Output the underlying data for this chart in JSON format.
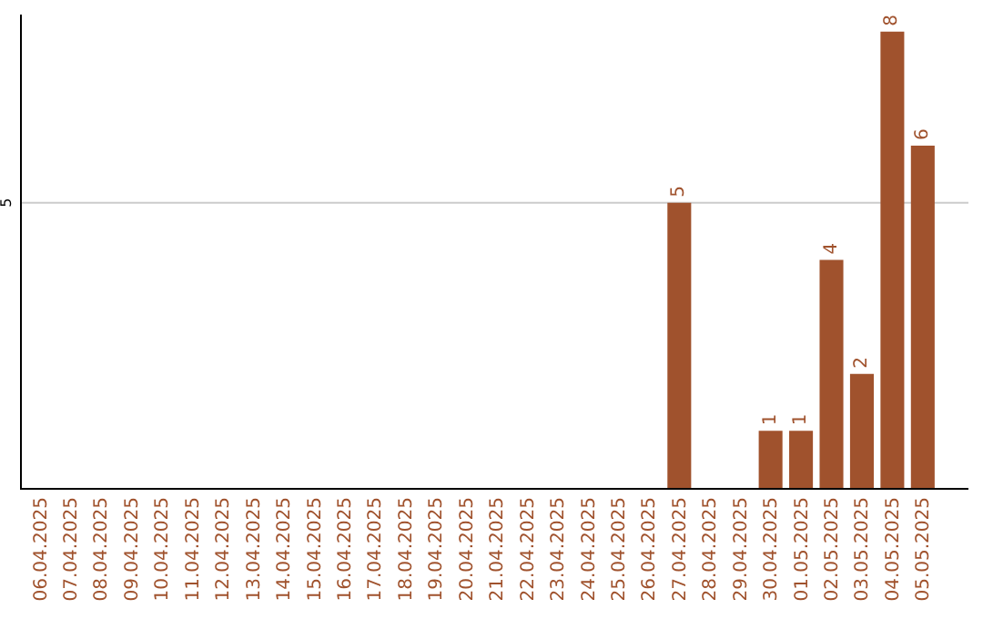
{
  "chart_data": {
    "type": "bar",
    "categories": [
      "06.04.2025",
      "07.04.2025",
      "08.04.2025",
      "09.04.2025",
      "10.04.2025",
      "11.04.2025",
      "12.04.2025",
      "13.04.2025",
      "14.04.2025",
      "15.04.2025",
      "16.04.2025",
      "17.04.2025",
      "18.04.2025",
      "19.04.2025",
      "20.04.2025",
      "21.04.2025",
      "22.04.2025",
      "23.04.2025",
      "24.04.2025",
      "25.04.2025",
      "26.04.2025",
      "27.04.2025",
      "28.04.2025",
      "29.04.2025",
      "30.04.2025",
      "01.05.2025",
      "02.05.2025",
      "03.05.2025",
      "04.05.2025",
      "05.05.2025"
    ],
    "values": [
      null,
      null,
      null,
      null,
      null,
      null,
      null,
      null,
      null,
      null,
      null,
      null,
      null,
      null,
      null,
      null,
      null,
      null,
      null,
      null,
      null,
      5,
      null,
      null,
      1,
      1,
      4,
      2,
      8,
      6
    ],
    "data_labels": true,
    "color": "#a0522d",
    "legend": false,
    "ylim": [
      0,
      8.3
    ],
    "ref_lines": [
      {
        "axis": "y",
        "value": 5,
        "label": "5",
        "color": "#cccccc"
      }
    ]
  }
}
